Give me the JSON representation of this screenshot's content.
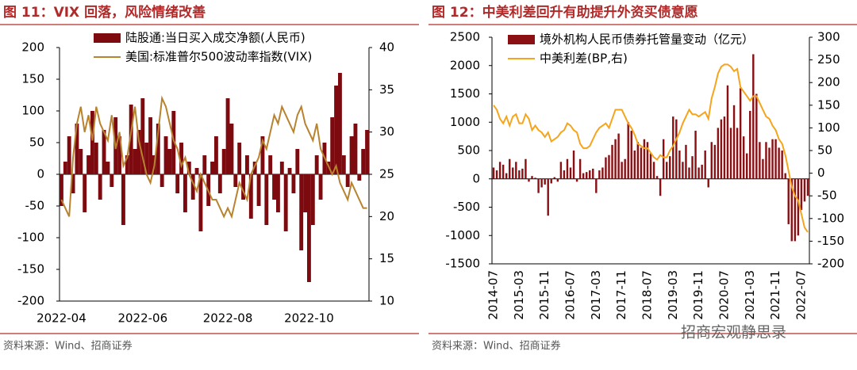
{
  "chart_data": [
    {
      "type": "combo",
      "title": "图 11：VIX 回落，风险情绪改善",
      "source": "资料来源：Wind、招商证券",
      "categories": [
        "2022-04",
        null,
        null,
        null,
        null,
        null,
        null,
        null,
        null,
        null,
        null,
        null,
        null,
        null,
        null,
        null,
        null,
        null,
        null,
        null,
        null,
        "2022-06",
        null,
        null,
        null,
        null,
        null,
        null,
        null,
        null,
        null,
        null,
        null,
        null,
        null,
        null,
        null,
        null,
        null,
        null,
        null,
        null,
        null,
        "2022-08",
        null,
        null,
        null,
        null,
        null,
        null,
        null,
        null,
        null,
        null,
        null,
        null,
        null,
        null,
        null,
        null,
        null,
        null,
        null,
        null,
        "2022-10",
        null,
        null,
        null,
        null,
        null,
        null,
        null,
        null,
        null,
        null,
        null,
        null,
        null,
        null,
        null
      ],
      "ylim": [
        -200,
        200
      ],
      "yticks": [
        -200,
        -150,
        -100,
        -50,
        0,
        50,
        100,
        150,
        200
      ],
      "y2lim": [
        10,
        40
      ],
      "y2ticks": [
        10,
        15,
        20,
        25,
        30,
        35,
        40
      ],
      "series": [
        {
          "name": "陆股通:当日买入成交净额(人民币)",
          "type": "bar",
          "color": "#7c0a0f",
          "values": [
            -50,
            20,
            60,
            -30,
            80,
            40,
            -60,
            30,
            100,
            50,
            -40,
            70,
            20,
            -20,
            90,
            60,
            -80,
            30,
            110,
            40,
            70,
            120,
            50,
            90,
            30,
            80,
            -20,
            60,
            40,
            100,
            -30,
            50,
            -60,
            20,
            -40,
            10,
            -90,
            30,
            -50,
            20,
            60,
            -30,
            40,
            120,
            80,
            -20,
            50,
            -40,
            30,
            -70,
            20,
            -50,
            60,
            -80,
            30,
            -40,
            -60,
            20,
            -90,
            10,
            -30,
            40,
            -120,
            -60,
            -170,
            -80,
            30,
            -40,
            50,
            20,
            90,
            140,
            160,
            30,
            -20,
            60,
            80,
            -10,
            40,
            70
          ]
        },
        {
          "name": "美国:标准普尔500波动率指数(VIX)",
          "type": "line",
          "axis": "y2",
          "color": "#b7832f",
          "values": [
            22,
            21,
            20,
            27,
            31,
            33,
            30,
            32,
            29,
            33,
            31,
            30,
            29,
            32,
            28,
            30,
            26,
            27,
            30,
            33,
            29,
            27,
            25,
            24,
            26,
            30,
            34,
            33,
            31,
            29,
            28,
            26,
            27,
            25,
            24,
            23,
            25,
            24,
            23,
            22,
            22,
            21,
            20,
            21,
            20,
            22,
            24,
            23,
            22,
            25,
            26,
            27,
            29,
            28,
            30,
            32,
            31,
            33,
            32,
            31,
            30,
            32,
            33,
            31,
            30,
            29,
            31,
            28,
            27,
            26,
            25,
            26,
            24,
            23,
            22,
            24,
            23,
            22,
            21,
            21
          ]
        }
      ]
    },
    {
      "type": "combo",
      "title": "图 12：中美利差回升有助提升外资买债意愿",
      "source": "资料来源：Wind、招商证券",
      "categories": [
        "2014-07",
        null,
        null,
        null,
        null,
        null,
        null,
        null,
        "2015-03",
        null,
        null,
        null,
        null,
        null,
        null,
        null,
        "2015-11",
        null,
        null,
        null,
        null,
        null,
        null,
        null,
        "2016-07",
        null,
        null,
        null,
        null,
        null,
        null,
        null,
        "2017-03",
        null,
        null,
        null,
        null,
        null,
        null,
        null,
        "2017-11",
        null,
        null,
        null,
        null,
        null,
        null,
        null,
        "2018-07",
        null,
        null,
        null,
        null,
        null,
        null,
        null,
        "2019-03",
        null,
        null,
        null,
        null,
        null,
        null,
        null,
        "2019-11",
        null,
        null,
        null,
        null,
        null,
        null,
        null,
        "2020-07",
        null,
        null,
        null,
        null,
        null,
        null,
        null,
        "2021-03",
        null,
        null,
        null,
        null,
        null,
        null,
        null,
        "2021-11",
        null,
        null,
        null,
        null,
        null,
        null,
        null,
        "2022-07",
        null,
        null
      ],
      "ylim": [
        -1500,
        2500
      ],
      "yticks": [
        -1500,
        -1000,
        -500,
        0,
        500,
        1000,
        1500,
        2000,
        2500
      ],
      "y2lim": [
        -200,
        300
      ],
      "y2ticks": [
        -200,
        -150,
        -100,
        -50,
        0,
        50,
        100,
        150,
        200,
        250,
        300
      ],
      "series": [
        {
          "name": "境外机构人民币债券托管量变动（亿元）",
          "type": "bar",
          "color": "#8b1014",
          "values": [
            200,
            150,
            300,
            250,
            100,
            350,
            200,
            300,
            150,
            180,
            350,
            -50,
            50,
            20,
            -250,
            -150,
            -100,
            -650,
            -80,
            30,
            -50,
            300,
            150,
            350,
            200,
            500,
            -50,
            350,
            100,
            120,
            150,
            180,
            -250,
            150,
            200,
            380,
            420,
            600,
            700,
            800,
            300,
            350,
            1000,
            850,
            500,
            650,
            550,
            700,
            650,
            450,
            300,
            50,
            -300,
            700,
            300,
            400,
            1100,
            1050,
            500,
            300,
            600,
            200,
            400,
            850,
            200,
            250,
            500,
            -150,
            650,
            600,
            900,
            1050,
            1100,
            1650,
            900,
            1300,
            900,
            1600,
            750,
            450,
            1200,
            2200,
            1500,
            650,
            350,
            650,
            550,
            700,
            700,
            550,
            500,
            100,
            -800,
            -1100,
            -1100,
            -1000,
            -550,
            -400,
            -300
          ]
        },
        {
          "name": "中美利差(BP,右)",
          "type": "line",
          "axis": "y2",
          "color": "#f5a51c",
          "values": [
            150,
            140,
            120,
            110,
            125,
            105,
            125,
            130,
            110,
            110,
            130,
            120,
            95,
            105,
            95,
            90,
            80,
            90,
            70,
            75,
            80,
            90,
            95,
            110,
            105,
            95,
            90,
            65,
            55,
            55,
            60,
            75,
            90,
            100,
            105,
            110,
            100,
            120,
            140,
            140,
            140,
            125,
            110,
            100,
            85,
            65,
            60,
            55,
            55,
            45,
            35,
            30,
            40,
            35,
            35,
            50,
            60,
            75,
            90,
            110,
            125,
            140,
            130,
            130,
            125,
            130,
            135,
            120,
            165,
            190,
            220,
            235,
            240,
            240,
            235,
            225,
            230,
            190,
            180,
            170,
            160,
            170,
            170,
            155,
            140,
            125,
            120,
            105,
            95,
            75,
            65,
            40,
            5,
            -30,
            -50,
            -60,
            -90,
            -120,
            -130
          ]
        }
      ]
    }
  ],
  "watermark": "招商宏观静思录"
}
